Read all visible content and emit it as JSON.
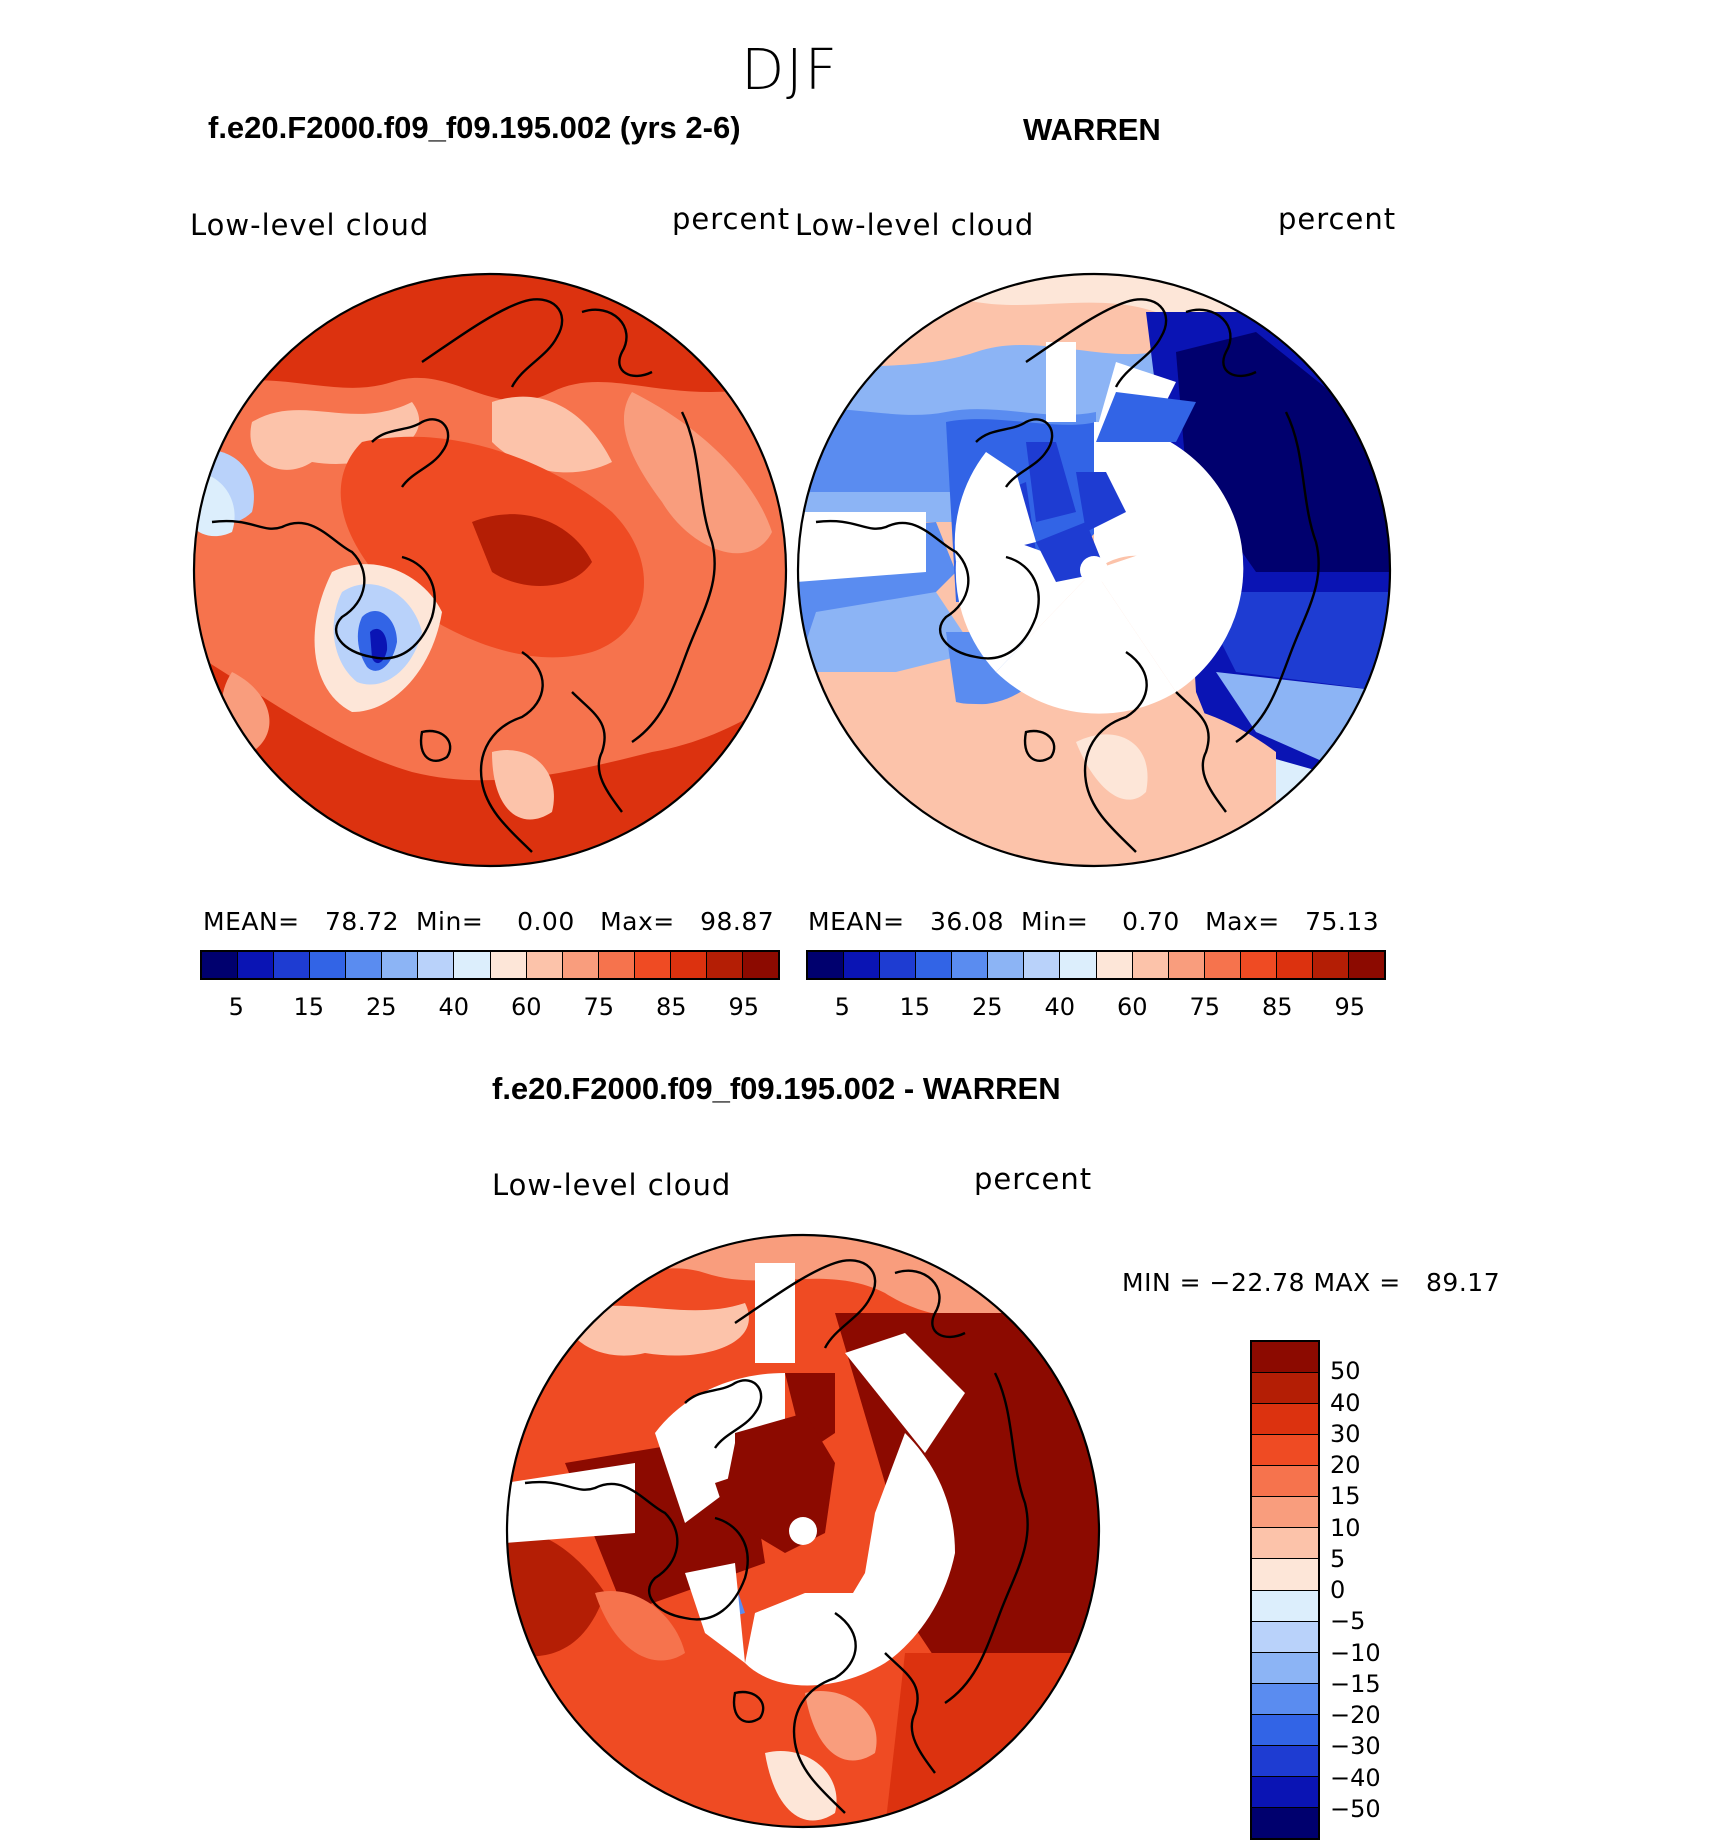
{
  "season": "DJF",
  "panels": [
    {
      "case_title": "f.e20.F2000.f09_f09.195.002 (yrs 2-6)",
      "variable": "Low-level cloud",
      "units": "percent",
      "mean_label": "MEAN=",
      "mean": "78.72",
      "min_label": "Min=",
      "min": "0.00",
      "max_label": "Max=",
      "max": "98.87"
    },
    {
      "case_title": "WARREN",
      "variable": "Low-level cloud",
      "units": "percent",
      "mean_label": "MEAN=",
      "mean": "36.08",
      "min_label": "Min=",
      "min": "0.70",
      "max_label": "Max=",
      "max": "75.13"
    }
  ],
  "diff": {
    "title": "f.e20.F2000.f09_f09.195.002 - WARREN",
    "variable": "Low-level cloud",
    "units": "percent",
    "min_label": "MIN =",
    "min": "−22.78",
    "max_label": "MAX =",
    "max": "89.17"
  },
  "colorbar_abs": {
    "colors": [
      "#00006e",
      "#0a14b4",
      "#1e3cd2",
      "#3264e6",
      "#5a8cf0",
      "#8cb4f5",
      "#b9d2fa",
      "#dceefc",
      "#fde6d8",
      "#fcc3aa",
      "#f99d7d",
      "#f6734d",
      "#ef4b23",
      "#dc320f",
      "#b41e05",
      "#8c0a00"
    ],
    "labels": [
      "5",
      "15",
      "25",
      "40",
      "60",
      "75",
      "85",
      "95"
    ]
  },
  "colorbar_diff": {
    "colors": [
      "#8c0a00",
      "#b41e05",
      "#dc320f",
      "#ef4b23",
      "#f6734d",
      "#f99d7d",
      "#fcc3aa",
      "#fde6d8",
      "#dceefc",
      "#b9d2fa",
      "#8cb4f5",
      "#5a8cf0",
      "#3264e6",
      "#1e3cd2",
      "#0a14b4",
      "#00006e"
    ],
    "labels": [
      "50",
      "40",
      "30",
      "20",
      "15",
      "10",
      "5",
      "0",
      "−5",
      "−10",
      "−15",
      "−20",
      "−30",
      "−40",
      "−50"
    ]
  },
  "map_fields": {
    "panel1_dominant": "#f6734d",
    "panel2_dominant": "#fcc3aa",
    "diff_dominant": "#ef4b23"
  }
}
